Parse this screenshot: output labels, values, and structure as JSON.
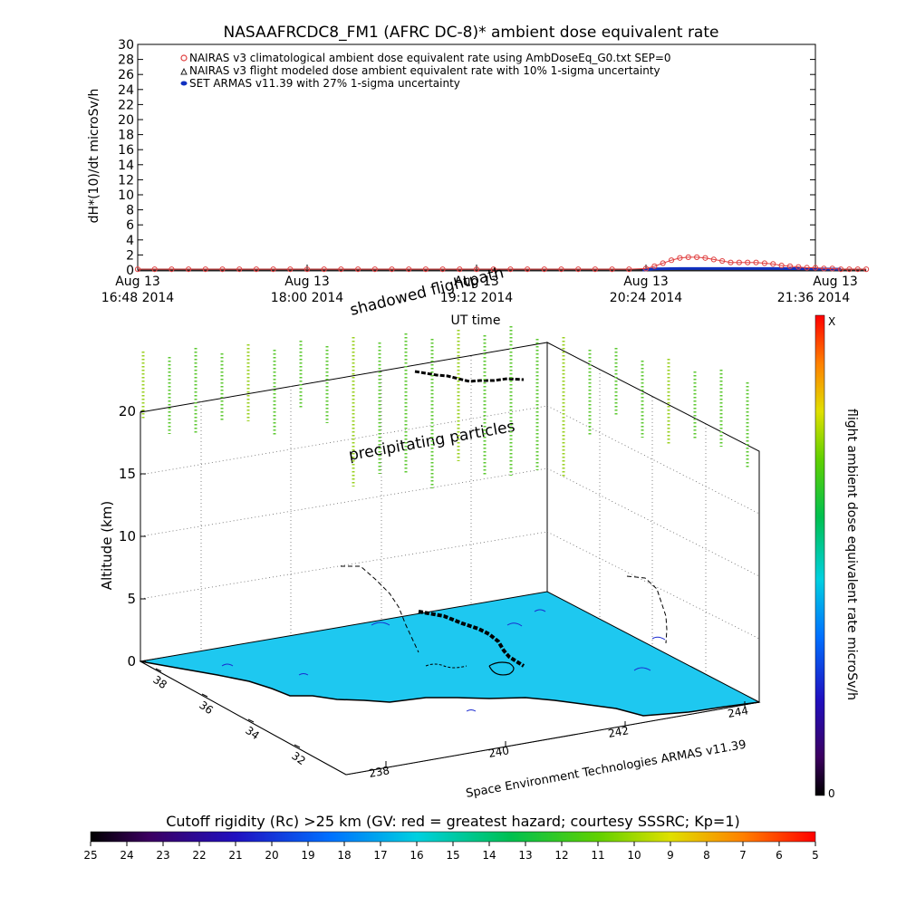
{
  "chart_data": [
    {
      "type": "line",
      "title": "NASAAFRCDC8_FM1 (AFRC DC-8)* ambient dose equivalent rate",
      "ylabel": "dH*(10)/dt microSv/h",
      "xlabel": "UT time",
      "ylim": [
        0,
        30
      ],
      "y_ticks": [
        "0",
        "2",
        "4",
        "6",
        "8",
        "10",
        "12",
        "14",
        "16",
        "18",
        "20",
        "22",
        "24",
        "26",
        "28",
        "30"
      ],
      "x_ticks": [
        {
          "date": "Aug 13",
          "time": "16:48 2014"
        },
        {
          "date": "Aug 13",
          "time": "18:00 2014"
        },
        {
          "date": "Aug 13",
          "time": "19:12 2014"
        },
        {
          "date": "Aug 13",
          "time": "20:24 2014"
        },
        {
          "date": "Aug 13",
          "time": "21:36 2014"
        }
      ],
      "legend": [
        {
          "label": "NAIRAS v3 climatological ambient dose equivalent rate using AmbDoseEq_G0.txt SEP=0",
          "color": "#e04040"
        },
        {
          "label": "NAIRAS v3 flight modeled dose ambient equivalent rate with 10% 1-sigma uncertainty",
          "color": "#202020"
        },
        {
          "label": "SET ARMAS v11.39 with 27% 1-sigma uncertainty",
          "color": "#1030c0"
        }
      ],
      "legend_placement": "top-left",
      "series": [
        {
          "x": [
            0.0,
            0.1,
            0.2,
            0.3,
            0.4,
            0.5,
            0.6,
            0.7,
            0.8,
            0.9,
            1.0,
            1.1,
            1.2,
            1.3,
            1.4,
            1.5,
            1.6,
            1.7,
            1.8,
            1.9,
            2.0,
            2.1,
            2.2,
            2.3,
            2.4,
            2.5,
            2.6,
            2.7,
            2.8,
            2.9,
            3.0,
            3.05,
            3.1,
            3.15,
            3.2,
            3.25,
            3.3,
            3.35,
            3.4,
            3.45,
            3.5,
            3.55,
            3.6,
            3.65,
            3.7,
            3.75,
            3.8,
            3.85,
            3.9,
            3.95,
            4.0,
            4.05,
            4.1,
            4.15,
            4.2,
            4.25,
            4.3
          ],
          "y": [
            0.1,
            0.1,
            0.1,
            0.1,
            0.1,
            0.1,
            0.1,
            0.1,
            0.1,
            0.1,
            0.1,
            0.1,
            0.1,
            0.1,
            0.1,
            0.1,
            0.1,
            0.1,
            0.1,
            0.1,
            0.1,
            0.1,
            0.1,
            0.1,
            0.1,
            0.1,
            0.1,
            0.1,
            0.1,
            0.1,
            0.2,
            0.5,
            0.9,
            1.3,
            1.6,
            1.7,
            1.7,
            1.6,
            1.4,
            1.2,
            1.0,
            1.0,
            1.0,
            1.0,
            0.9,
            0.8,
            0.6,
            0.5,
            0.4,
            0.3,
            0.3,
            0.2,
            0.2,
            0.1,
            0.1,
            0.1,
            0.1
          ]
        },
        {
          "x": [
            0.0,
            4.3
          ],
          "y": [
            0.0,
            0.0
          ]
        },
        {
          "x": [
            2.98,
            3.05,
            3.2,
            3.4,
            3.6,
            3.8,
            4.0,
            4.15
          ],
          "y": [
            0.0,
            0.15,
            0.2,
            0.2,
            0.2,
            0.2,
            0.15,
            0.1
          ]
        }
      ]
    },
    {
      "type": "scatter",
      "zlabel": "Altitude (km)",
      "z_ticks": [
        "0",
        "5",
        "10",
        "15",
        "20"
      ],
      "lat_ticks": [
        "38",
        "36",
        "34",
        "32"
      ],
      "lon_ticks": [
        "238",
        "240",
        "242",
        "244"
      ],
      "source_label": "Space Environment Technologies ARMAS v11.39",
      "annotations": [
        "shadowed flightpath",
        "precipitating particles"
      ],
      "colorbar": {
        "label": "flight ambient dose equivalent rate microSv/h",
        "max": "X",
        "min": "0"
      }
    },
    {
      "type": "heatmap",
      "title": "Cutoff rigidity (Rc) >25 km (GV: red = greatest hazard; courtesy SSSRC; Kp=1)",
      "ticks": [
        "25",
        "24",
        "23",
        "22",
        "21",
        "20",
        "19",
        "18",
        "17",
        "16",
        "15",
        "14",
        "13",
        "12",
        "11",
        "10",
        "9",
        "8",
        "7",
        "6",
        "5"
      ]
    }
  ]
}
